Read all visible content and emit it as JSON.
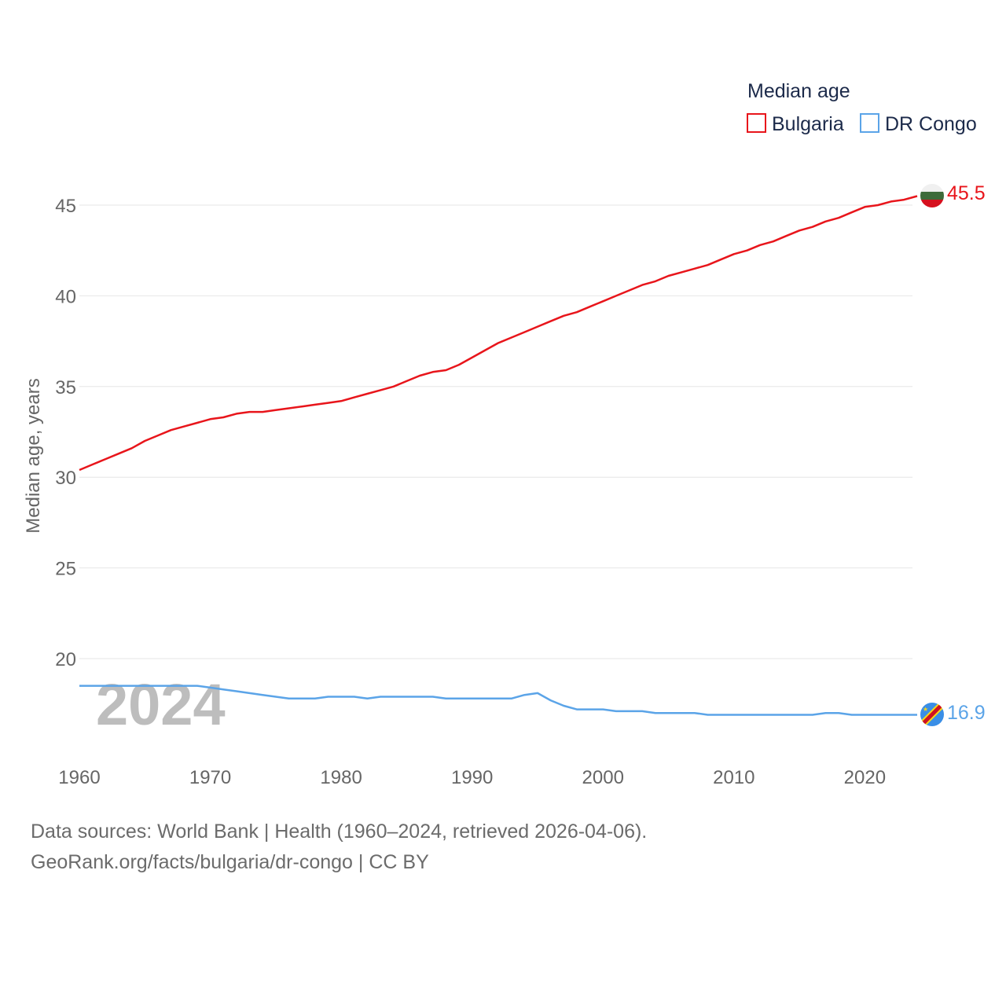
{
  "chart_data": {
    "type": "line",
    "legend": {
      "title": "Median age",
      "placement": "top-right"
    },
    "ylabel": "Median age, years",
    "xlabel": "",
    "xlim": [
      1960,
      2024
    ],
    "ylim": [
      15,
      46
    ],
    "yticks": [
      20,
      25,
      30,
      35,
      40,
      45
    ],
    "xticks": [
      1960,
      1970,
      1980,
      1990,
      2000,
      2010,
      2020
    ],
    "year_watermark": "2024",
    "x": [
      1960,
      1961,
      1962,
      1963,
      1964,
      1965,
      1966,
      1967,
      1968,
      1969,
      1970,
      1971,
      1972,
      1973,
      1974,
      1975,
      1976,
      1977,
      1978,
      1979,
      1980,
      1981,
      1982,
      1983,
      1984,
      1985,
      1986,
      1987,
      1988,
      1989,
      1990,
      1991,
      1992,
      1993,
      1994,
      1995,
      1996,
      1997,
      1998,
      1999,
      2000,
      2001,
      2002,
      2003,
      2004,
      2005,
      2006,
      2007,
      2008,
      2009,
      2010,
      2011,
      2012,
      2013,
      2014,
      2015,
      2016,
      2017,
      2018,
      2019,
      2020,
      2021,
      2022,
      2023,
      2024
    ],
    "series": [
      {
        "name": "Bulgaria",
        "color": "#e8151b",
        "end_label": "45.5",
        "flag": "bulgaria-flag",
        "values": [
          30.4,
          30.7,
          31.0,
          31.3,
          31.6,
          32.0,
          32.3,
          32.6,
          32.8,
          33.0,
          33.2,
          33.3,
          33.5,
          33.6,
          33.6,
          33.7,
          33.8,
          33.9,
          34.0,
          34.1,
          34.2,
          34.4,
          34.6,
          34.8,
          35.0,
          35.3,
          35.6,
          35.8,
          35.9,
          36.2,
          36.6,
          37.0,
          37.4,
          37.7,
          38.0,
          38.3,
          38.6,
          38.9,
          39.1,
          39.4,
          39.7,
          40.0,
          40.3,
          40.6,
          40.8,
          41.1,
          41.3,
          41.5,
          41.7,
          42.0,
          42.3,
          42.5,
          42.8,
          43.0,
          43.3,
          43.6,
          43.8,
          44.1,
          44.3,
          44.6,
          44.9,
          45.0,
          45.2,
          45.3,
          45.5
        ]
      },
      {
        "name": "DR Congo",
        "color": "#5ba4e8",
        "end_label": "16.9",
        "flag": "dr-congo-flag",
        "values": [
          18.5,
          18.5,
          18.5,
          18.5,
          18.5,
          18.5,
          18.5,
          18.5,
          18.5,
          18.5,
          18.4,
          18.3,
          18.2,
          18.1,
          18.0,
          17.9,
          17.8,
          17.8,
          17.8,
          17.9,
          17.9,
          17.9,
          17.8,
          17.9,
          17.9,
          17.9,
          17.9,
          17.9,
          17.8,
          17.8,
          17.8,
          17.8,
          17.8,
          17.8,
          18.0,
          18.1,
          17.7,
          17.4,
          17.2,
          17.2,
          17.2,
          17.1,
          17.1,
          17.1,
          17.0,
          17.0,
          17.0,
          17.0,
          16.9,
          16.9,
          16.9,
          16.9,
          16.9,
          16.9,
          16.9,
          16.9,
          16.9,
          17.0,
          17.0,
          16.9,
          16.9,
          16.9,
          16.9,
          16.9,
          16.9
        ]
      }
    ],
    "grid": true
  },
  "footer": {
    "line1": "Data sources: World Bank | Health (1960–2024, retrieved 2026-04-06).",
    "line2": "GeoRank.org/facts/bulgaria/dr-congo | CC BY"
  },
  "colors": {
    "grid": "#e6e6e6",
    "tick_text": "#666666",
    "legend_text": "#1c2a4a",
    "watermark": "#bdbdbd"
  }
}
